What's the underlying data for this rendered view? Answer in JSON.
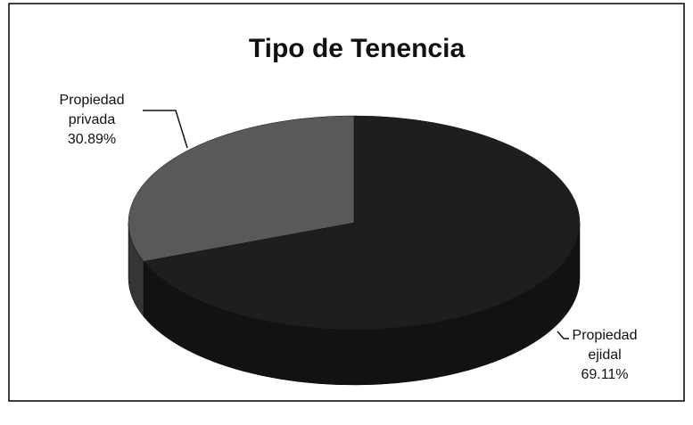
{
  "chart_data": {
    "type": "pie",
    "title": "Tipo de Tenencia",
    "categories": [
      "Propiedad ejidal",
      "Propiedad privada"
    ],
    "values": [
      69.11,
      30.89
    ],
    "value_labels": [
      "69.11%",
      "30.89%"
    ],
    "colors": [
      "#1e1e1e",
      "#595959"
    ]
  }
}
